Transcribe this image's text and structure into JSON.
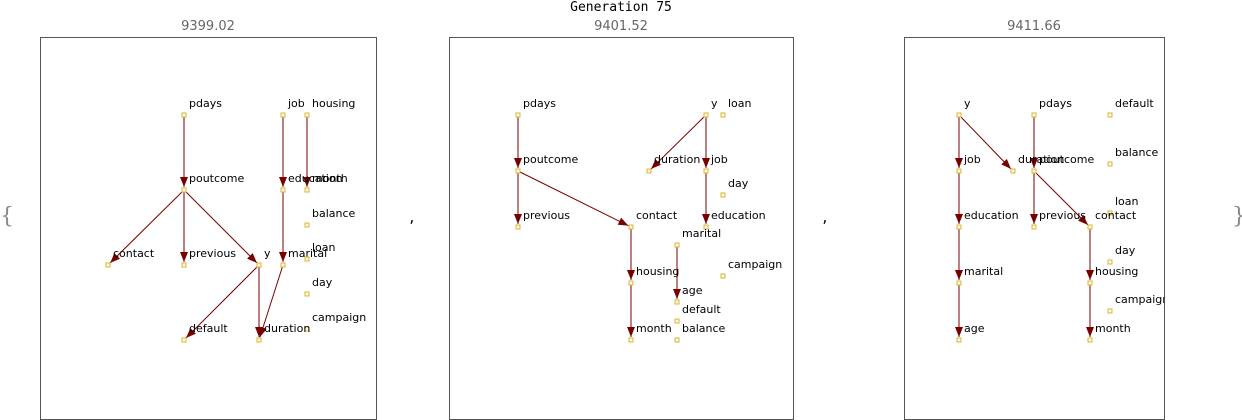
{
  "title": "Generation 75",
  "open_brace": "{",
  "close_brace": "}",
  "separators": [
    ",",
    ","
  ],
  "panels": [
    {
      "label": "9399.02",
      "nodes": [
        "pdays",
        "job",
        "housing",
        "poutcome",
        "education",
        "month",
        "balance",
        "contact",
        "previous",
        "y",
        "marital",
        "loan",
        "day",
        "campaign",
        "default",
        "duration"
      ],
      "edges": [
        [
          "pdays",
          "poutcome"
        ],
        [
          "poutcome",
          "contact"
        ],
        [
          "poutcome",
          "previous"
        ],
        [
          "poutcome",
          "y"
        ],
        [
          "y",
          "default"
        ],
        [
          "y",
          "duration"
        ],
        [
          "job",
          "education"
        ],
        [
          "education",
          "marital"
        ],
        [
          "marital",
          "duration"
        ],
        [
          "housing",
          "month"
        ]
      ]
    },
    {
      "label": "9401.52",
      "nodes": [
        "pdays",
        "y",
        "loan",
        "poutcome",
        "duration",
        "job",
        "day",
        "previous",
        "contact",
        "education",
        "marital",
        "campaign",
        "housing",
        "age",
        "default",
        "month",
        "balance"
      ],
      "edges": [
        [
          "pdays",
          "poutcome"
        ],
        [
          "poutcome",
          "previous"
        ],
        [
          "poutcome",
          "contact"
        ],
        [
          "y",
          "duration"
        ],
        [
          "y",
          "job"
        ],
        [
          "job",
          "education"
        ],
        [
          "contact",
          "housing"
        ],
        [
          "housing",
          "month"
        ],
        [
          "marital",
          "age"
        ]
      ]
    },
    {
      "label": "9411.66",
      "nodes": [
        "y",
        "pdays",
        "default",
        "job",
        "duration",
        "poutcome",
        "balance",
        "loan",
        "education",
        "previous",
        "contact",
        "day",
        "marital",
        "housing",
        "campaign",
        "age",
        "month"
      ],
      "edges": [
        [
          "y",
          "job"
        ],
        [
          "y",
          "duration"
        ],
        [
          "job",
          "education"
        ],
        [
          "education",
          "marital"
        ],
        [
          "marital",
          "age"
        ],
        [
          "pdays",
          "poutcome"
        ],
        [
          "poutcome",
          "previous"
        ],
        [
          "poutcome",
          "contact"
        ],
        [
          "contact",
          "housing"
        ],
        [
          "housing",
          "month"
        ]
      ]
    }
  ]
}
